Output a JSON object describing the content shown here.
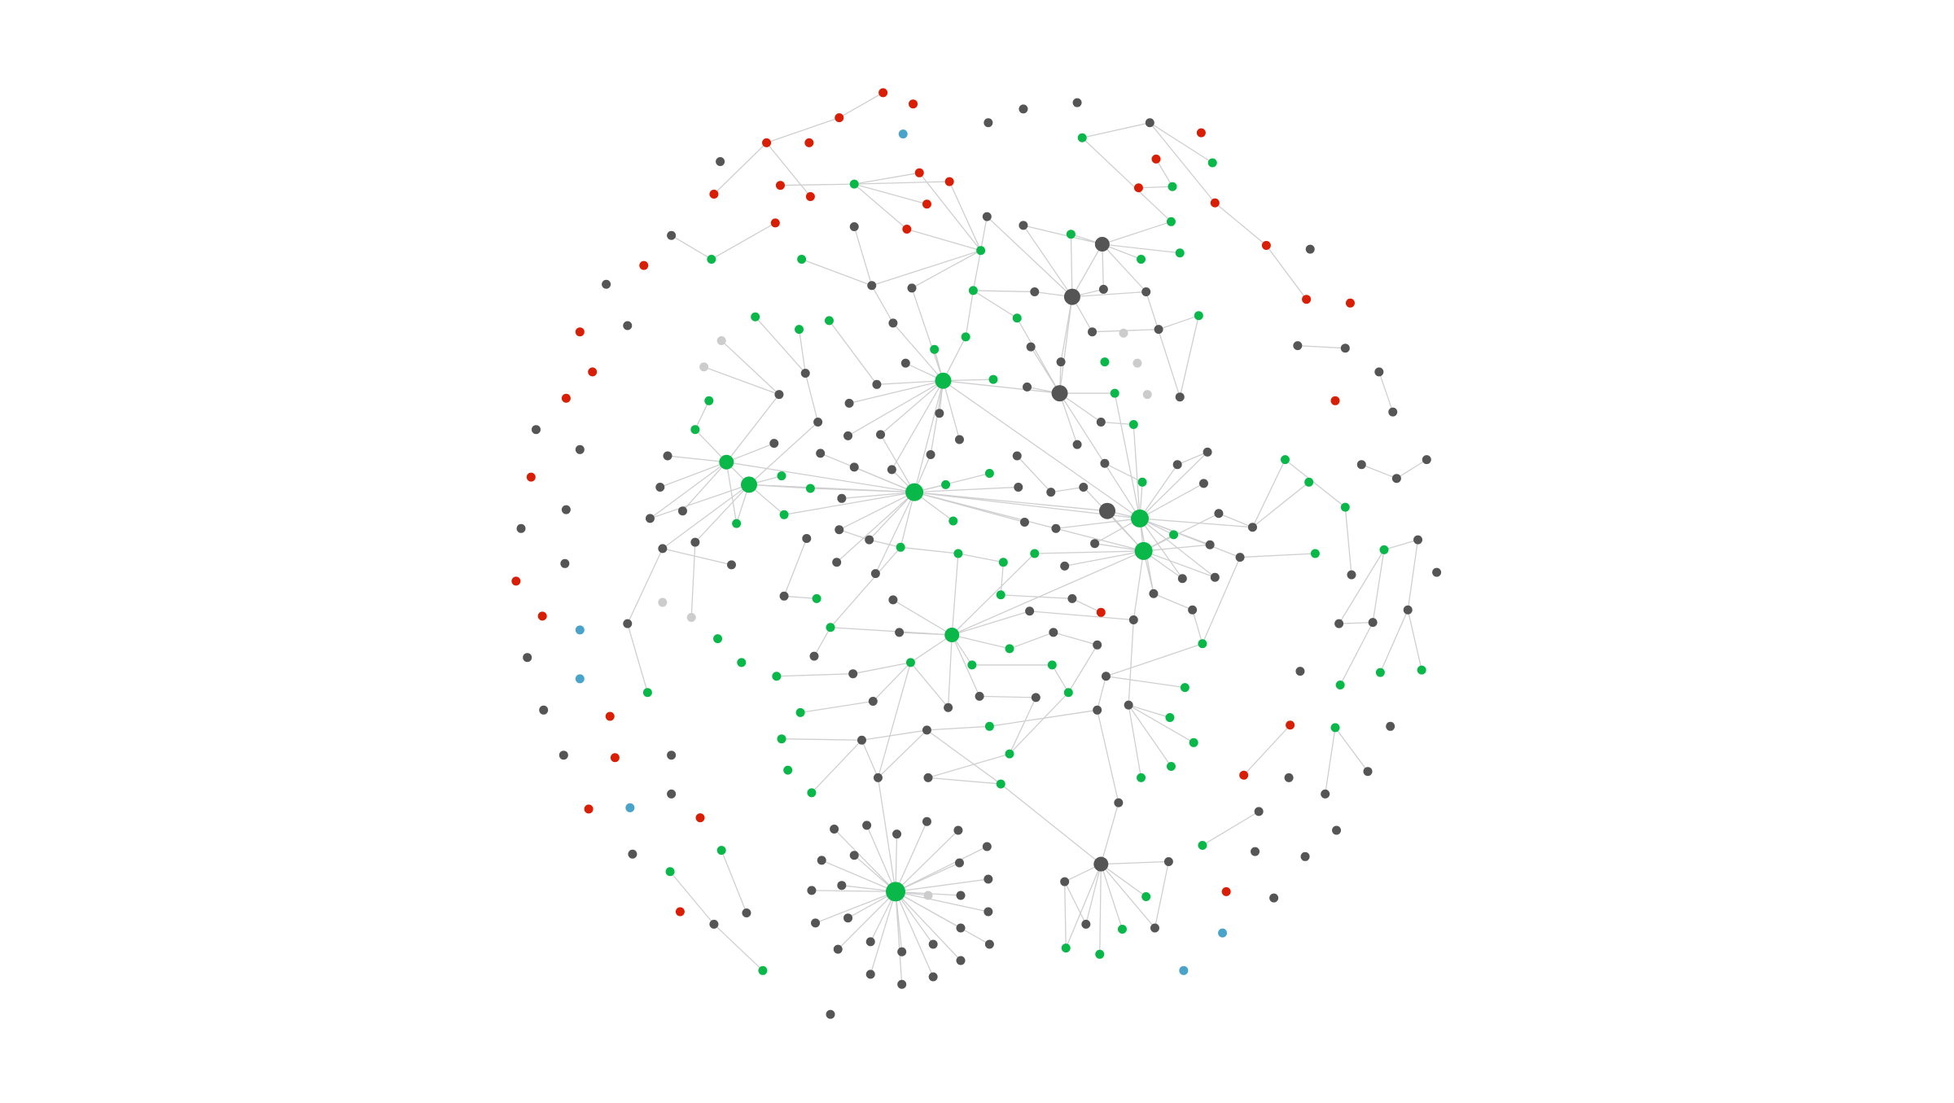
{
  "diagram": {
    "type": "network-graph",
    "group_colors": {
      "r": "#d81e05",
      "g": "#555555",
      "G": "#0ab84a",
      "b": "#4aa3c8",
      "l": "#cccccc"
    },
    "edge_color": "#cfcfd2",
    "nodes": [
      "r",
      "r",
      "r",
      "r",
      "r",
      "b",
      "g",
      "g",
      "g",
      "g",
      "G",
      "g",
      "r",
      "r",
      "G",
      "G",
      "r",
      "r",
      "G",
      "r",
      "r",
      "r",
      "r",
      "r",
      "r",
      "r",
      "g",
      "r",
      "g",
      "g",
      "g",
      "G",
      "G",
      "r",
      "G",
      "G",
      "g",
      "G",
      "G",
      "G",
      "r",
      "g",
      "g",
      "g",
      "g",
      "G",
      "g",
      "g",
      "g",
      "g",
      "r",
      "r",
      "r",
      "g",
      "G",
      "G",
      "G",
      "g",
      "G",
      "G",
      "g",
      "l",
      "g",
      "G",
      "l",
      "G",
      "g",
      "g",
      "g",
      "r",
      "l",
      "g",
      "g",
      "g",
      "G",
      "l",
      "g",
      "r",
      "G",
      "g",
      "g",
      "G",
      "G",
      "g",
      "g",
      "G",
      "l",
      "g",
      "r",
      "g",
      "g",
      "G",
      "g",
      "g",
      "g",
      "g",
      "G",
      "g",
      "g",
      "G",
      "g",
      "g",
      "g",
      "g",
      "g",
      "g",
      "g",
      "g",
      "g",
      "G",
      "g",
      "g",
      "r",
      "g",
      "G",
      "G",
      "G",
      "g",
      "g",
      "G",
      "G",
      "G",
      "g",
      "g",
      "g",
      "g",
      "G",
      "g",
      "g",
      "G",
      "g",
      "g",
      "g",
      "g",
      "G",
      "G",
      "g",
      "g",
      "G",
      "g",
      "G",
      "g",
      "g",
      "g",
      "g",
      "g",
      "g",
      "G",
      "G",
      "g",
      "g",
      "g",
      "G",
      "G",
      "g",
      "g",
      "g",
      "G",
      "G",
      "g",
      "r",
      "g",
      "g",
      "g",
      "G",
      "G",
      "G",
      "g",
      "g",
      "g",
      "g",
      "g",
      "g",
      "l",
      "l",
      "g",
      "G",
      "g",
      "G",
      "g",
      "g",
      "r",
      "b",
      "g",
      "G",
      "g",
      "r",
      "g",
      "g",
      "g",
      "g",
      "g",
      "g",
      "G",
      "G",
      "g",
      "g",
      "G",
      "G",
      "g",
      "g",
      "G",
      "G",
      "G",
      "G",
      "G",
      "g",
      "g",
      "b",
      "G",
      "g",
      "G",
      "G",
      "G",
      "G",
      "G",
      "g",
      "g",
      "g",
      "g",
      "g",
      "r",
      "G",
      "g",
      "g",
      "G",
      "g",
      "G",
      "r",
      "G",
      "g",
      "g",
      "r",
      "g",
      "G",
      "g",
      "G",
      "G",
      "G",
      "G",
      "G",
      "g",
      "g",
      "G",
      "r",
      "g",
      "g",
      "g",
      "G",
      "g",
      "g",
      "r",
      "b",
      "r",
      "g",
      "g",
      "g",
      "g",
      "g",
      "g",
      "g",
      "g",
      "G",
      "g",
      "g",
      "g",
      "g",
      "g",
      "g",
      "G",
      "g",
      "g",
      "G",
      "g",
      "g",
      "g",
      "g",
      "G",
      "l",
      "g",
      "G",
      "r",
      "g",
      "r",
      "g",
      "g",
      "g",
      "g",
      "g",
      "g",
      "G",
      "g",
      "g",
      "b",
      "g",
      "g",
      "g",
      "g",
      "g",
      "G",
      "G",
      "g",
      "G",
      "b",
      "g",
      "g",
      "g",
      "g"
    ],
    "edges": [
      [
        1,
        3
      ],
      [
        3,
        4
      ],
      [
        4,
        25
      ],
      [
        4,
        23
      ],
      [
        22,
        19
      ],
      [
        19,
        20
      ],
      [
        19,
        21
      ],
      [
        19,
        28
      ],
      [
        19,
        24
      ],
      [
        21,
        35
      ],
      [
        20,
        35
      ],
      [
        26,
        32
      ],
      [
        33,
        44
      ],
      [
        28,
        35
      ],
      [
        12,
        11
      ],
      [
        12,
        15
      ],
      [
        12,
        18
      ],
      [
        14,
        16
      ],
      [
        17,
        16
      ],
      [
        18,
        41
      ],
      [
        41,
        51
      ],
      [
        278,
        257
      ],
      [
        278,
        258
      ],
      [
        278,
        259
      ],
      [
        278,
        260
      ],
      [
        278,
        261
      ],
      [
        278,
        262
      ],
      [
        278,
        265
      ],
      [
        278,
        266
      ],
      [
        278,
        267
      ],
      [
        278,
        274
      ],
      [
        278,
        276
      ],
      [
        278,
        277
      ],
      [
        278,
        279
      ],
      [
        278,
        280
      ],
      [
        278,
        286
      ],
      [
        278,
        287
      ],
      [
        278,
        288
      ],
      [
        278,
        289
      ],
      [
        278,
        295
      ],
      [
        278,
        296
      ],
      [
        278,
        297
      ],
      [
        278,
        298
      ],
      [
        278,
        299
      ],
      [
        278,
        302
      ],
      [
        278,
        305
      ],
      [
        278,
        306
      ],
      [
        278,
        307
      ],
      [
        278,
        242
      ],
      [
        268,
        251
      ],
      [
        268,
        269
      ],
      [
        268,
        275
      ],
      [
        268,
        281
      ],
      [
        268,
        290
      ],
      [
        268,
        291
      ],
      [
        268,
        292
      ],
      [
        268,
        300
      ],
      [
        268,
        301
      ],
      [
        268,
        244
      ],
      [
        275,
        300
      ],
      [
        275,
        290
      ],
      [
        269,
        292
      ],
      [
        82,
        66
      ],
      [
        82,
        59
      ],
      [
        82,
        73
      ],
      [
        82,
        81
      ],
      [
        82,
        95
      ],
      [
        82,
        94
      ],
      [
        82,
        104
      ],
      [
        82,
        105
      ],
      [
        82,
        106
      ],
      [
        82,
        83
      ],
      [
        82,
        120
      ],
      [
        82,
        45
      ],
      [
        82,
        58
      ],
      [
        82,
        103
      ],
      [
        82,
        119
      ],
      [
        82,
        85
      ],
      [
        82,
        139
      ],
      [
        120,
        115
      ],
      [
        120,
        100
      ],
      [
        120,
        117
      ],
      [
        120,
        118
      ],
      [
        120,
        119
      ],
      [
        120,
        121
      ],
      [
        120,
        122
      ],
      [
        120,
        123
      ],
      [
        120,
        137
      ],
      [
        120,
        146
      ],
      [
        120,
        148
      ],
      [
        120,
        149
      ],
      [
        120,
        147
      ],
      [
        120,
        104
      ],
      [
        120,
        105
      ],
      [
        120,
        102
      ],
      [
        120,
        136
      ],
      [
        120,
        169
      ],
      [
        120,
        164
      ],
      [
        120,
        139
      ],
      [
        120,
        153
      ],
      [
        120,
        150
      ],
      [
        120,
        138
      ],
      [
        139,
        127
      ],
      [
        139,
        128
      ],
      [
        139,
        129
      ],
      [
        139,
        138
      ],
      [
        139,
        153
      ],
      [
        139,
        154
      ],
      [
        139,
        155
      ],
      [
        139,
        156
      ],
      [
        139,
        157
      ],
      [
        139,
        170
      ],
      [
        139,
        171
      ],
      [
        139,
        181
      ],
      [
        139,
        109
      ],
      [
        139,
        97
      ],
      [
        139,
        86
      ],
      [
        139,
        152
      ],
      [
        139,
        151
      ],
      [
        139,
        85
      ],
      [
        153,
        152
      ],
      [
        153,
        138
      ],
      [
        153,
        170
      ],
      [
        153,
        171
      ],
      [
        153,
        181
      ],
      [
        153,
        188
      ],
      [
        153,
        154
      ],
      [
        153,
        155
      ],
      [
        153,
        140
      ],
      [
        153,
        167
      ],
      [
        153,
        168
      ],
      [
        153,
        125
      ],
      [
        153,
        198
      ],
      [
        198,
        197
      ],
      [
        198,
        203
      ],
      [
        198,
        204
      ],
      [
        198,
        199
      ],
      [
        198,
        185
      ],
      [
        198,
        220
      ],
      [
        198,
        218
      ],
      [
        198,
        178
      ],
      [
        198,
        186
      ],
      [
        198,
        165
      ],
      [
        198,
        167
      ],
      [
        100,
        99
      ],
      [
        100,
        114
      ],
      [
        100,
        115
      ],
      [
        100,
        92
      ],
      [
        100,
        133
      ],
      [
        100,
        134
      ],
      [
        100,
        135
      ],
      [
        100,
        101
      ],
      [
        100,
        80
      ],
      [
        115,
        116
      ],
      [
        115,
        117
      ],
      [
        115,
        136
      ],
      [
        115,
        135
      ],
      [
        115,
        143
      ],
      [
        115,
        134
      ],
      [
        115,
        144
      ],
      [
        115,
        93
      ],
      [
        48,
        47
      ],
      [
        48,
        49
      ],
      [
        48,
        37
      ],
      [
        48,
        50
      ],
      [
        48,
        36
      ],
      [
        48,
        61
      ],
      [
        48,
        74
      ],
      [
        48,
        85
      ],
      [
        48,
        29
      ],
      [
        48,
        30
      ],
      [
        85,
        74
      ],
      [
        85,
        84
      ],
      [
        85,
        86
      ],
      [
        85,
        96
      ],
      [
        85,
        108
      ],
      [
        85,
        67
      ],
      [
        85,
        60
      ],
      [
        37,
        36
      ],
      [
        37,
        38
      ],
      [
        37,
        39
      ],
      [
        37,
        40
      ],
      [
        37,
        49
      ],
      [
        37,
        50
      ],
      [
        37,
        30
      ],
      [
        35,
        29
      ],
      [
        35,
        46
      ],
      [
        35,
        44
      ],
      [
        35,
        45
      ],
      [
        46,
        47
      ],
      [
        46,
        59
      ],
      [
        46,
        60
      ],
      [
        156,
        110
      ],
      [
        156,
        130
      ],
      [
        110,
        141
      ],
      [
        141,
        172
      ],
      [
        159,
        190
      ],
      [
        191,
        159
      ],
      [
        191,
        190
      ],
      [
        191,
        214
      ],
      [
        192,
        160
      ],
      [
        192,
        213
      ],
      [
        192,
        212
      ],
      [
        230,
        247
      ],
      [
        230,
        250
      ],
      [
        229,
        245
      ],
      [
        255,
        270
      ],
      [
        202,
        157
      ],
      [
        202,
        208
      ],
      [
        202,
        189
      ],
      [
        201,
        200
      ],
      [
        201,
        216
      ],
      [
        208,
        224
      ],
      [
        224,
        251
      ],
      [
        225,
        226
      ],
      [
        225,
        240
      ],
      [
        225,
        241
      ],
      [
        225,
        237
      ],
      [
        208,
        215
      ],
      [
        188,
        225
      ],
      [
        184,
        210
      ],
      [
        184,
        144
      ],
      [
        143,
        175
      ],
      [
        163,
        144
      ],
      [
        176,
        177
      ],
      [
        176,
        145
      ],
      [
        196,
        185
      ],
      [
        185,
        148
      ],
      [
        206,
        207
      ],
      [
        207,
        203
      ],
      [
        223,
        219
      ],
      [
        219,
        203
      ],
      [
        235,
        236
      ],
      [
        236,
        227
      ],
      [
        249,
        236
      ],
      [
        227,
        228
      ],
      [
        227,
        244
      ],
      [
        238,
        216
      ],
      [
        238,
        217
      ],
      [
        243,
        244
      ],
      [
        242,
        236
      ],
      [
        242,
        227
      ],
      [
        220,
        203
      ],
      [
        203,
        242
      ],
      [
        263,
        285
      ],
      [
        273,
        293
      ],
      [
        293,
        303
      ],
      [
        65,
        80
      ],
      [
        71,
        80
      ],
      [
        55,
        72
      ],
      [
        56,
        72
      ],
      [
        72,
        93
      ],
      [
        57,
        81
      ],
      [
        58,
        44
      ],
      [
        79,
        92
      ],
      [
        31,
        32
      ],
      [
        27,
        44
      ],
      [
        61,
        63
      ],
      [
        63,
        64
      ],
      [
        64,
        88
      ],
      [
        88,
        50
      ],
      [
        38,
        11
      ],
      [
        96,
        97
      ],
      [
        107,
        124
      ],
      [
        124,
        125
      ],
      [
        126,
        127
      ],
      [
        109,
        128
      ],
      [
        140,
        156
      ],
      [
        157,
        158
      ],
      [
        160,
        159
      ],
      [
        131,
        111
      ],
      [
        112,
        131
      ],
      [
        90,
        77
      ],
      [
        69,
        68
      ],
      [
        146,
        147
      ],
      [
        147,
        148
      ],
      [
        148,
        165
      ],
      [
        165,
        166
      ],
      [
        166,
        179
      ],
      [
        179,
        180
      ],
      [
        180,
        187
      ],
      [
        199,
        200
      ],
      [
        204,
        205
      ],
      [
        205,
        216
      ],
      [
        186,
        188
      ],
      [
        189,
        181
      ],
      [
        217,
        218
      ],
      [
        228,
        224
      ],
      [
        243,
        238
      ]
    ]
  }
}
